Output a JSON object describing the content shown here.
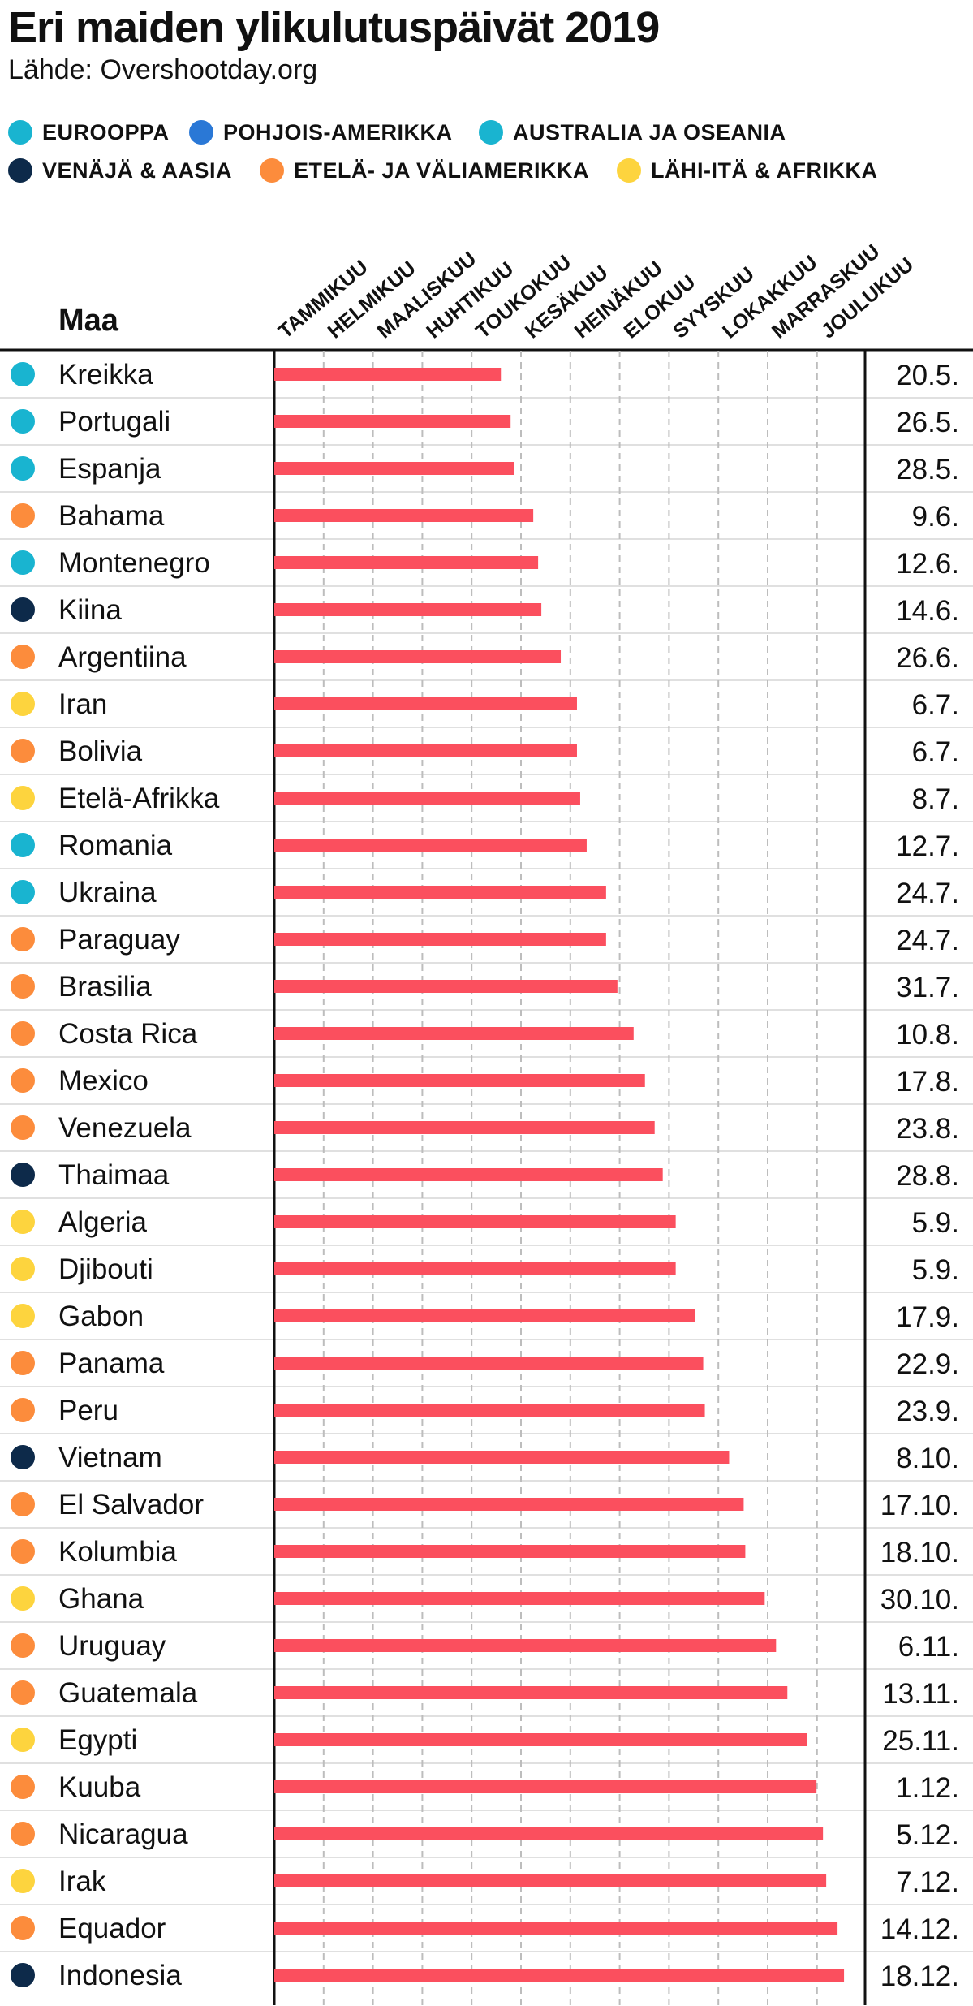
{
  "title": "Eri maiden ylikulutuspäivät 2019",
  "source": "Lähde: Overshootday.org",
  "legend": [
    {
      "label": "EUROOPPA",
      "color": "#19b4d0"
    },
    {
      "label": "POHJOIS-AMERIKKA",
      "color": "#2a78d6"
    },
    {
      "label": "AUSTRALIA JA OSEANIA",
      "color": "#19b4d0"
    },
    {
      "label": "VENÄJÄ & AASIA",
      "color": "#0d2a4a"
    },
    {
      "label": "ETELÄ- JA VÄLIAMERIKKA",
      "color": "#fc8c3c"
    },
    {
      "label": "LÄHI-ITÄ & AFRIKKA",
      "color": "#fdd43e"
    }
  ],
  "column_header": "Maa",
  "bar_color": "#fb4f5e",
  "chart_data": {
    "type": "bar",
    "orientation": "horizontal",
    "title": "Eri maiden ylikulutuspäivät 2019",
    "xlabel": "",
    "ylabel": "Maa",
    "x_unit": "day of year 2019",
    "xlim": [
      0,
      365
    ],
    "x_ticks": [
      "TAMMIKUU",
      "HELMIKUU",
      "MAALISKUU",
      "HUHTIKUU",
      "TOUKOKUU",
      "KESÄKUU",
      "HEINÄKUU",
      "ELOKUU",
      "SYYSKUU",
      "LOKAKKUU",
      "MARRASKUU",
      "JOULUKUU"
    ],
    "gridlines": true,
    "categories": [
      "Kreikka",
      "Portugali",
      "Espanja",
      "Bahama",
      "Montenegro",
      "Kiina",
      "Argentiina",
      "Iran",
      "Bolivia",
      "Etelä-Afrikka",
      "Romania",
      "Ukraina",
      "Paraguay",
      "Brasilia",
      "Costa Rica",
      "Mexico",
      "Venezuela",
      "Thaimaa",
      "Algeria",
      "Djibouti",
      "Gabon",
      "Panama",
      "Peru",
      "Vietnam",
      "El Salvador",
      "Kolumbia",
      "Ghana",
      "Uruguay",
      "Guatemala",
      "Egypti",
      "Kuuba",
      "Nicaragua",
      "Irak",
      "Equador",
      "Indonesia"
    ],
    "regions": [
      "Eurooppa",
      "Eurooppa",
      "Eurooppa",
      "Etelä- ja Väliamerikka",
      "Eurooppa",
      "Venäjä & Aasia",
      "Etelä- ja Väliamerikka",
      "Lähi-itä & Afrikka",
      "Etelä- ja Väliamerikka",
      "Lähi-itä & Afrikka",
      "Eurooppa",
      "Eurooppa",
      "Etelä- ja Väliamerikka",
      "Etelä- ja Väliamerikka",
      "Etelä- ja Väliamerikka",
      "Etelä- ja Väliamerikka",
      "Etelä- ja Väliamerikka",
      "Venäjä & Aasia",
      "Lähi-itä & Afrikka",
      "Lähi-itä & Afrikka",
      "Lähi-itä & Afrikka",
      "Etelä- ja Väliamerikka",
      "Etelä- ja Väliamerikka",
      "Venäjä & Aasia",
      "Etelä- ja Väliamerikka",
      "Etelä- ja Väliamerikka",
      "Lähi-itä & Afrikka",
      "Etelä- ja Väliamerikka",
      "Etelä- ja Väliamerikka",
      "Lähi-itä & Afrikka",
      "Etelä- ja Väliamerikka",
      "Etelä- ja Väliamerikka",
      "Lähi-itä & Afrikka",
      "Etelä- ja Väliamerikka",
      "Venäjä & Aasia"
    ],
    "region_colors": [
      "#19b4d0",
      "#19b4d0",
      "#19b4d0",
      "#fc8c3c",
      "#19b4d0",
      "#0d2a4a",
      "#fc8c3c",
      "#fdd43e",
      "#fc8c3c",
      "#fdd43e",
      "#19b4d0",
      "#19b4d0",
      "#fc8c3c",
      "#fc8c3c",
      "#fc8c3c",
      "#fc8c3c",
      "#fc8c3c",
      "#0d2a4a",
      "#fdd43e",
      "#fdd43e",
      "#fdd43e",
      "#fc8c3c",
      "#fc8c3c",
      "#0d2a4a",
      "#fc8c3c",
      "#fc8c3c",
      "#fdd43e",
      "#fc8c3c",
      "#fc8c3c",
      "#fdd43e",
      "#fc8c3c",
      "#fc8c3c",
      "#fdd43e",
      "#fc8c3c",
      "#0d2a4a"
    ],
    "dates": [
      "20.5.",
      "26.5.",
      "28.5.",
      "9.6.",
      "12.6.",
      "14.6.",
      "26.6.",
      "6.7.",
      "6.7.",
      "8.7.",
      "12.7.",
      "24.7.",
      "24.7.",
      "31.7.",
      "10.8.",
      "17.8.",
      "23.8.",
      "28.8.",
      "5.9.",
      "5.9.",
      "17.9.",
      "22.9.",
      "23.9.",
      "8.10.",
      "17.10.",
      "18.10.",
      "30.10.",
      "6.11.",
      "13.11.",
      "25.11.",
      "1.12.",
      "5.12.",
      "7.12.",
      "14.12.",
      "18.12."
    ],
    "values": [
      140,
      146,
      148,
      160,
      163,
      165,
      177,
      187,
      187,
      189,
      193,
      205,
      205,
      212,
      222,
      229,
      235,
      240,
      248,
      248,
      260,
      265,
      266,
      281,
      290,
      291,
      303,
      310,
      317,
      329,
      335,
      339,
      341,
      348,
      352
    ]
  }
}
